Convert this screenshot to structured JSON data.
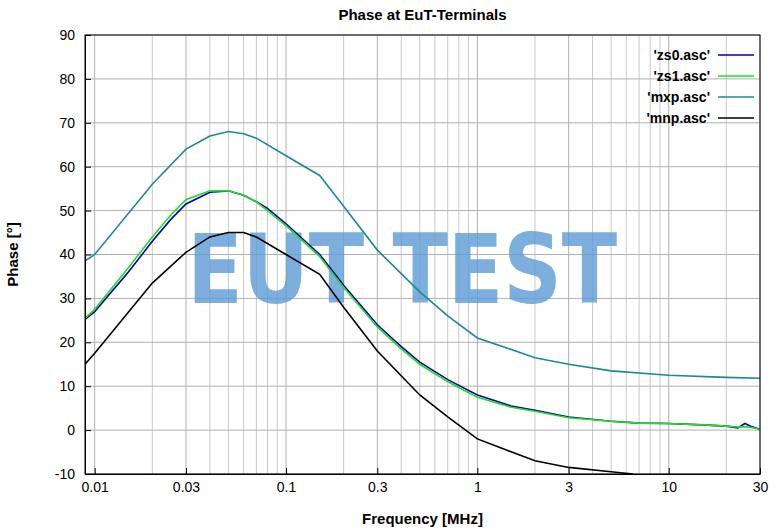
{
  "chart_data": {
    "type": "line",
    "title": "Phase at EuT-Terminals",
    "x_label": "Frequency [MHz]",
    "y_label": "Phase [°]",
    "annotations": [
      {
        "text": "EUT TEST"
      }
    ],
    "log": "x",
    "grid": true,
    "legend": "top-right",
    "xlim": [
      0.0089,
      30
    ],
    "ylim": [
      -10,
      90
    ],
    "xticks": [
      0.01,
      0.03,
      0.1,
      0.3,
      1,
      3,
      10,
      30
    ],
    "xminorticks": [
      0.02,
      0.04,
      0.05,
      0.06,
      0.07,
      0.08,
      0.09,
      0.2,
      0.4,
      0.5,
      0.6,
      0.7,
      0.8,
      0.9,
      2,
      4,
      5,
      6,
      7,
      8,
      9,
      20
    ],
    "yticks": [
      -10,
      0,
      10,
      20,
      30,
      40,
      50,
      60,
      70,
      80,
      90
    ],
    "series": [
      {
        "name": "'zs0.asc'",
        "color": "#0000b0",
        "line_style": "solid",
        "x": [
          0.0089,
          0.01,
          0.015,
          0.02,
          0.025,
          0.03,
          0.04,
          0.05,
          0.06,
          0.07,
          0.08,
          0.1,
          0.15,
          0.2,
          0.3,
          0.4,
          0.5,
          0.7,
          1,
          1.5,
          2,
          3,
          5,
          7,
          10,
          15,
          20,
          23,
          25,
          27,
          30
        ],
        "values": [
          25.2,
          27,
          36,
          43,
          48,
          51.5,
          54.2,
          54.5,
          53.5,
          52,
          50.5,
          47,
          40,
          33,
          24,
          19,
          15.5,
          11.5,
          8,
          5.5,
          4.5,
          3,
          2,
          1.6,
          1.5,
          1.2,
          0.9,
          0.5,
          1.5,
          0.8,
          0.2
        ]
      },
      {
        "name": "'zs1.asc'",
        "color": "#22dd22",
        "line_style": "solid",
        "x": [
          0.0089,
          0.01,
          0.015,
          0.02,
          0.025,
          0.03,
          0.04,
          0.05,
          0.06,
          0.07,
          0.08,
          0.1,
          0.15,
          0.2,
          0.3,
          0.4,
          0.5,
          0.7,
          1,
          1.5,
          2,
          3,
          5,
          7,
          10,
          15,
          20,
          23,
          25,
          27,
          30
        ],
        "values": [
          25.5,
          27.5,
          37,
          44,
          49,
          52.5,
          54.5,
          54.5,
          53.5,
          52,
          50,
          46.5,
          39.5,
          32.5,
          23.5,
          18.5,
          15,
          11,
          7.5,
          5.2,
          4.3,
          2.8,
          2,
          1.6,
          1.5,
          1.2,
          0.9,
          0.7,
          0.8,
          0.6,
          0.2
        ]
      },
      {
        "name": "'mxp.asc'",
        "color": "#1e8a8a",
        "line_style": "solid",
        "x": [
          0.0089,
          0.01,
          0.02,
          0.03,
          0.04,
          0.05,
          0.06,
          0.07,
          0.1,
          0.15,
          0.2,
          0.3,
          0.5,
          0.7,
          1,
          2,
          3,
          5,
          10,
          20,
          30
        ],
        "values": [
          38.5,
          40,
          56,
          64,
          67,
          68,
          67.5,
          66.5,
          62.5,
          58,
          51,
          41,
          31.5,
          26,
          21,
          16.5,
          15,
          13.5,
          12.5,
          12,
          11.8
        ]
      },
      {
        "name": "'mnp.asc'",
        "color": "#000000",
        "line_style": "solid",
        "x": [
          0.0089,
          0.01,
          0.02,
          0.03,
          0.04,
          0.05,
          0.06,
          0.07,
          0.1,
          0.15,
          0.2,
          0.3,
          0.5,
          0.7,
          1,
          2,
          3,
          5,
          6.5
        ],
        "values": [
          15,
          17.5,
          33.5,
          40.5,
          44,
          45,
          45,
          44,
          40,
          35.5,
          28,
          18,
          8,
          3,
          -2,
          -7,
          -8.5,
          -9.5,
          -10
        ]
      }
    ]
  }
}
